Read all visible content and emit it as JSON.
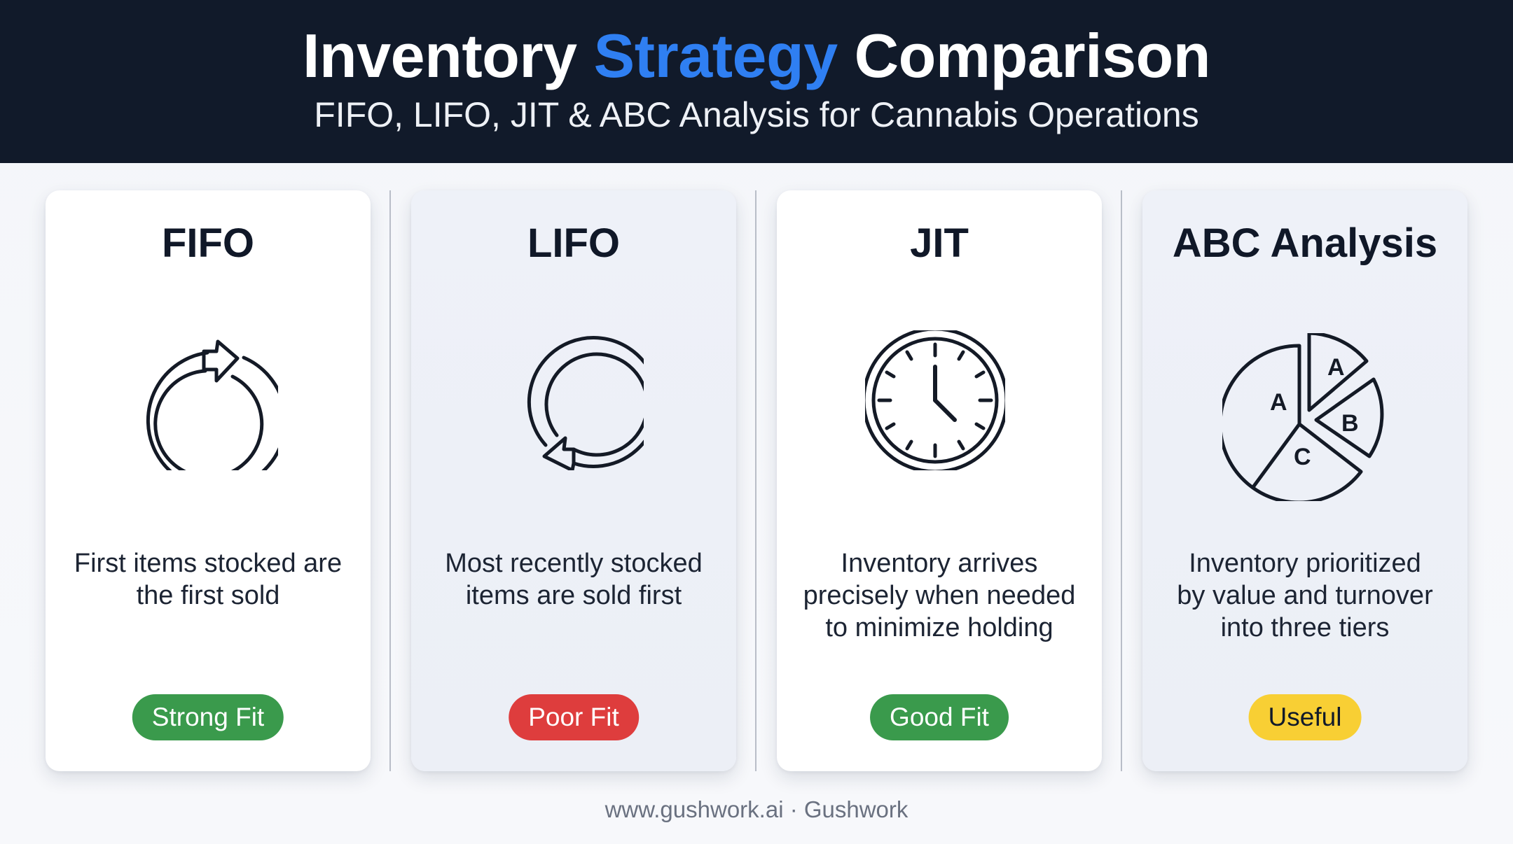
{
  "header": {
    "title_part1": "Inventory",
    "title_accent": "Strategy",
    "title_part2": "Comparison",
    "subtitle": "FIFO, LIFO, JIT & ABC Analysis for Cannabis Operations"
  },
  "cards": [
    {
      "title": "FIFO",
      "icon": "clockwise-cycle-icon",
      "desc_line1": "First items stocked are",
      "desc_line2": "the first sold",
      "desc_line3": "",
      "badge": "Strong Fit",
      "badge_color": "#3a9a4c",
      "badge_text_color": "#ffffff"
    },
    {
      "title": "LIFO",
      "icon": "counterclockwise-cycle-icon",
      "desc_line1": "Most recently stocked",
      "desc_line2": "items are sold first",
      "desc_line3": "",
      "badge": "Poor Fit",
      "badge_color": "#de3d3d",
      "badge_text_color": "#ffffff"
    },
    {
      "title": "JIT",
      "icon": "clock-icon",
      "desc_line1": "Inventory arrives",
      "desc_line2": "precisely when needed",
      "desc_line3": "to minimize holding",
      "badge": "Good Fit",
      "badge_color": "#3a9a4c",
      "badge_text_color": "#ffffff"
    },
    {
      "title": "ABC Analysis",
      "icon": "pie-chart-icon",
      "desc_line1": "Inventory prioritized",
      "desc_line2": "by value and turnover",
      "desc_line3": "into three tiers",
      "badge": "Useful",
      "badge_color": "#f8cf34",
      "badge_text_color": "#111a2a",
      "pie_labels": [
        "A",
        "B",
        "C",
        "A"
      ]
    }
  ],
  "footer": "www.gushwork.ai · Gushwork",
  "colors": {
    "header_bg": "#111a2a",
    "accent": "#2f7ff2",
    "icon_stroke": "#141a26"
  }
}
